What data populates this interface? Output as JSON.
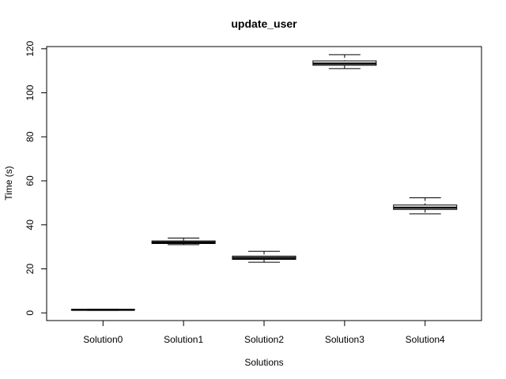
{
  "chart_data": {
    "type": "boxplot",
    "title": "update_user",
    "xlabel": "Solutions",
    "ylabel": "Time (s)",
    "ylim": [
      -3.5,
      121
    ],
    "yticks": [
      0,
      20,
      40,
      60,
      80,
      100,
      120
    ],
    "grid": false,
    "categories": [
      "Solution0",
      "Solution1",
      "Solution2",
      "Solution3",
      "Solution4"
    ],
    "boxes": [
      {
        "min": 1.1,
        "q1": 1.3,
        "median": 1.4,
        "q3": 1.5,
        "max": 1.7
      },
      {
        "min": 31.0,
        "q1": 31.5,
        "median": 32.0,
        "q3": 32.7,
        "max": 34.0
      },
      {
        "min": 23.0,
        "q1": 24.3,
        "median": 25.0,
        "q3": 25.8,
        "max": 28.0
      },
      {
        "min": 111.0,
        "q1": 112.5,
        "median": 113.3,
        "q3": 114.5,
        "max": 117.3
      },
      {
        "min": 45.0,
        "q1": 47.0,
        "median": 47.8,
        "q3": 49.0,
        "max": 52.3
      }
    ]
  }
}
